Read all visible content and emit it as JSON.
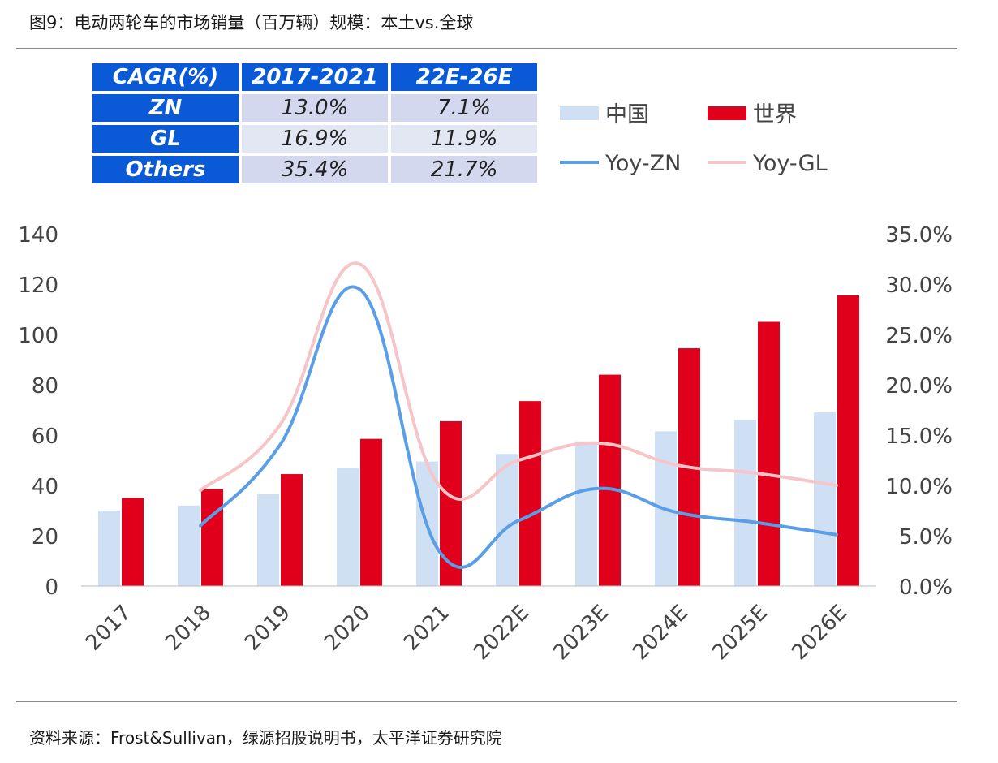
{
  "figure": {
    "title": "图9：电动两轮车的市场销量（百万辆）规模：本土vs.全球",
    "source": "资料来源：Frost&Sullivan，绿源招股说明书，太平洋证券研究院"
  },
  "cagr_table": {
    "header": [
      "CAGR(%)",
      "2017-2021",
      "22E-26E"
    ],
    "rows": [
      {
        "label": "ZN",
        "v1": "13.0%",
        "v2": "7.1%"
      },
      {
        "label": "GL",
        "v1": "16.9%",
        "v2": "11.9%"
      },
      {
        "label": "Others",
        "v1": "35.4%",
        "v2": "21.7%"
      }
    ]
  },
  "chart_data": {
    "type": "bar",
    "categories": [
      "2017",
      "2018",
      "2019",
      "2020",
      "2021",
      "2022E",
      "2023E",
      "2024E",
      "2025E",
      "2026E"
    ],
    "series": [
      {
        "name": "中国",
        "type": "bar",
        "axis": "left",
        "color": "#cfe0f5",
        "values": [
          30,
          32,
          36.5,
          47,
          49.5,
          52.5,
          57.5,
          61.5,
          66,
          69
        ]
      },
      {
        "name": "世界",
        "type": "bar",
        "axis": "left",
        "color": "#e0001b",
        "values": [
          35,
          38.5,
          44.5,
          58.5,
          65.5,
          73.5,
          84,
          94.5,
          105,
          115.5
        ]
      },
      {
        "name": "Yoy-ZN",
        "type": "line",
        "axis": "right",
        "color": "#5a9ee6",
        "values": [
          null,
          6.0,
          14.0,
          29.5,
          3.5,
          6.5,
          9.7,
          7.3,
          6.3,
          5.1
        ]
      },
      {
        "name": "Yoy-GL",
        "type": "line",
        "axis": "right",
        "color": "#f6c5c8",
        "values": [
          null,
          9.5,
          16.0,
          32.0,
          10.0,
          12.5,
          14.2,
          12.0,
          11.2,
          10.0
        ]
      }
    ],
    "y_left": {
      "min": 0,
      "max": 140,
      "ticks": [
        0,
        20,
        40,
        60,
        80,
        100,
        120,
        140
      ]
    },
    "y_right": {
      "min": 0,
      "max": 35,
      "ticks": [
        "0.0%",
        "5.0%",
        "10.0%",
        "15.0%",
        "20.0%",
        "25.0%",
        "30.0%",
        "35.0%"
      ]
    },
    "grid": false,
    "legend_position": "top-right",
    "x_tick_rotation": -45
  }
}
